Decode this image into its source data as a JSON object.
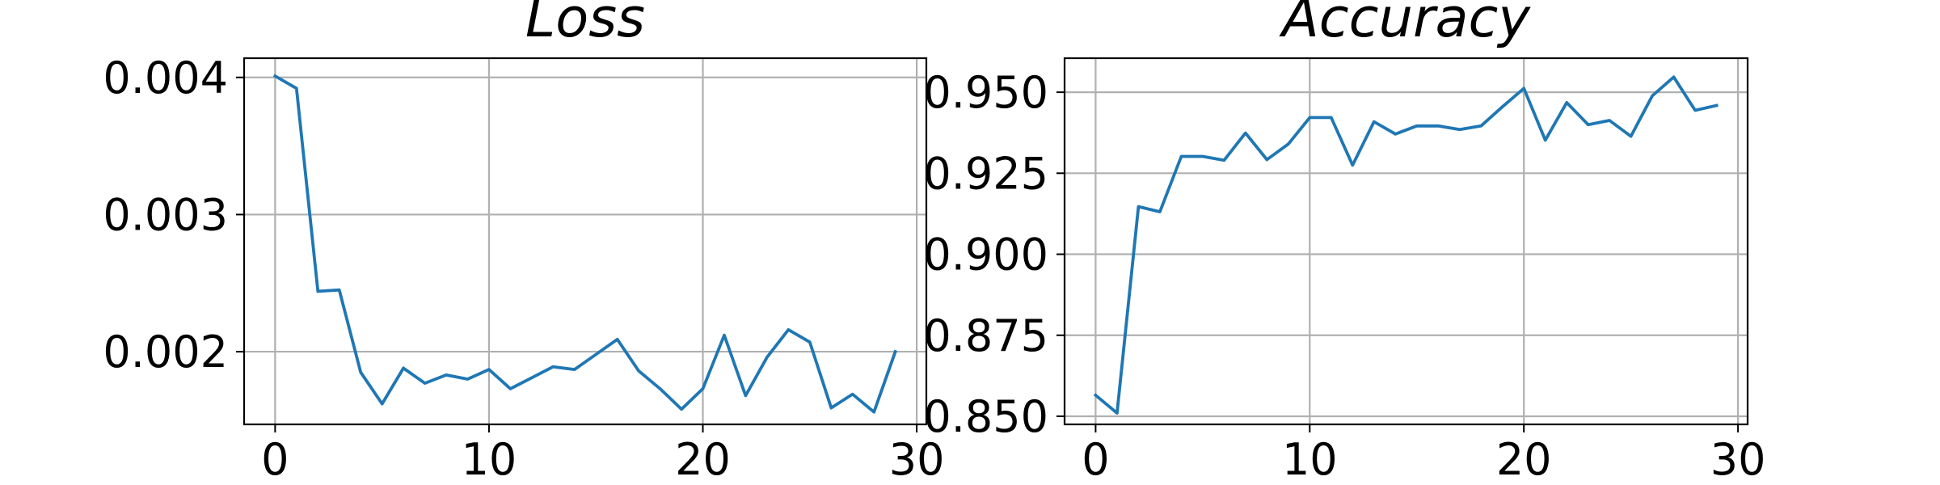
{
  "chart_data": [
    {
      "type": "line",
      "title": "Loss",
      "xlabel": "",
      "ylabel": "",
      "xlim": [
        -1.45,
        30.45
      ],
      "ylim": [
        0.00147,
        0.00414
      ],
      "xticks": [
        0,
        10,
        20,
        30
      ],
      "xtick_labels": [
        "0",
        "10",
        "20",
        "30"
      ],
      "yticks": [
        0.002,
        0.003,
        0.004
      ],
      "ytick_labels": [
        "0.002",
        "0.003",
        "0.004"
      ],
      "grid": true,
      "color": "#1f77b4",
      "series": [
        {
          "x": [
            0,
            1,
            2,
            3,
            4,
            5,
            6,
            7,
            8,
            9,
            10,
            11,
            12,
            13,
            14,
            15,
            16,
            17,
            18,
            19,
            20,
            21,
            22,
            23,
            24,
            25,
            26,
            27,
            28,
            29
          ],
          "values": [
            0.00401,
            0.00392,
            0.00244,
            0.00245,
            0.00185,
            0.00162,
            0.00188,
            0.00177,
            0.00183,
            0.0018,
            0.00187,
            0.00173,
            0.00181,
            0.00189,
            0.00187,
            0.00198,
            0.00209,
            0.00186,
            0.00173,
            0.00158,
            0.00173,
            0.00212,
            0.00168,
            0.00196,
            0.00216,
            0.00207,
            0.00159,
            0.00169,
            0.00156,
            0.002
          ]
        }
      ]
    },
    {
      "type": "line",
      "title": "Accuracy",
      "xlabel": "",
      "ylabel": "",
      "xlim": [
        -1.45,
        30.45
      ],
      "ylim": [
        0.8475,
        0.9605
      ],
      "xticks": [
        0,
        10,
        20,
        30
      ],
      "xtick_labels": [
        "0",
        "10",
        "20",
        "30"
      ],
      "yticks": [
        0.85,
        0.875,
        0.9,
        0.925,
        0.95
      ],
      "ytick_labels": [
        "0.850",
        "0.875",
        "0.900",
        "0.925",
        "0.950"
      ],
      "grid": true,
      "color": "#1f77b4",
      "series": [
        {
          "x": [
            0,
            1,
            2,
            3,
            4,
            5,
            6,
            7,
            8,
            9,
            10,
            11,
            12,
            13,
            14,
            15,
            16,
            17,
            18,
            19,
            20,
            21,
            22,
            23,
            24,
            25,
            26,
            27,
            28,
            29
          ],
          "values": [
            0.8565,
            0.851,
            0.9147,
            0.9131,
            0.9302,
            0.9302,
            0.929,
            0.9374,
            0.9292,
            0.934,
            0.9422,
            0.9422,
            0.9275,
            0.9409,
            0.9371,
            0.9396,
            0.9396,
            0.9385,
            0.9396,
            0.9455,
            0.9512,
            0.9352,
            0.9468,
            0.94,
            0.9413,
            0.9364,
            0.9489,
            0.9547,
            0.9444,
            0.9459
          ]
        }
      ]
    }
  ]
}
